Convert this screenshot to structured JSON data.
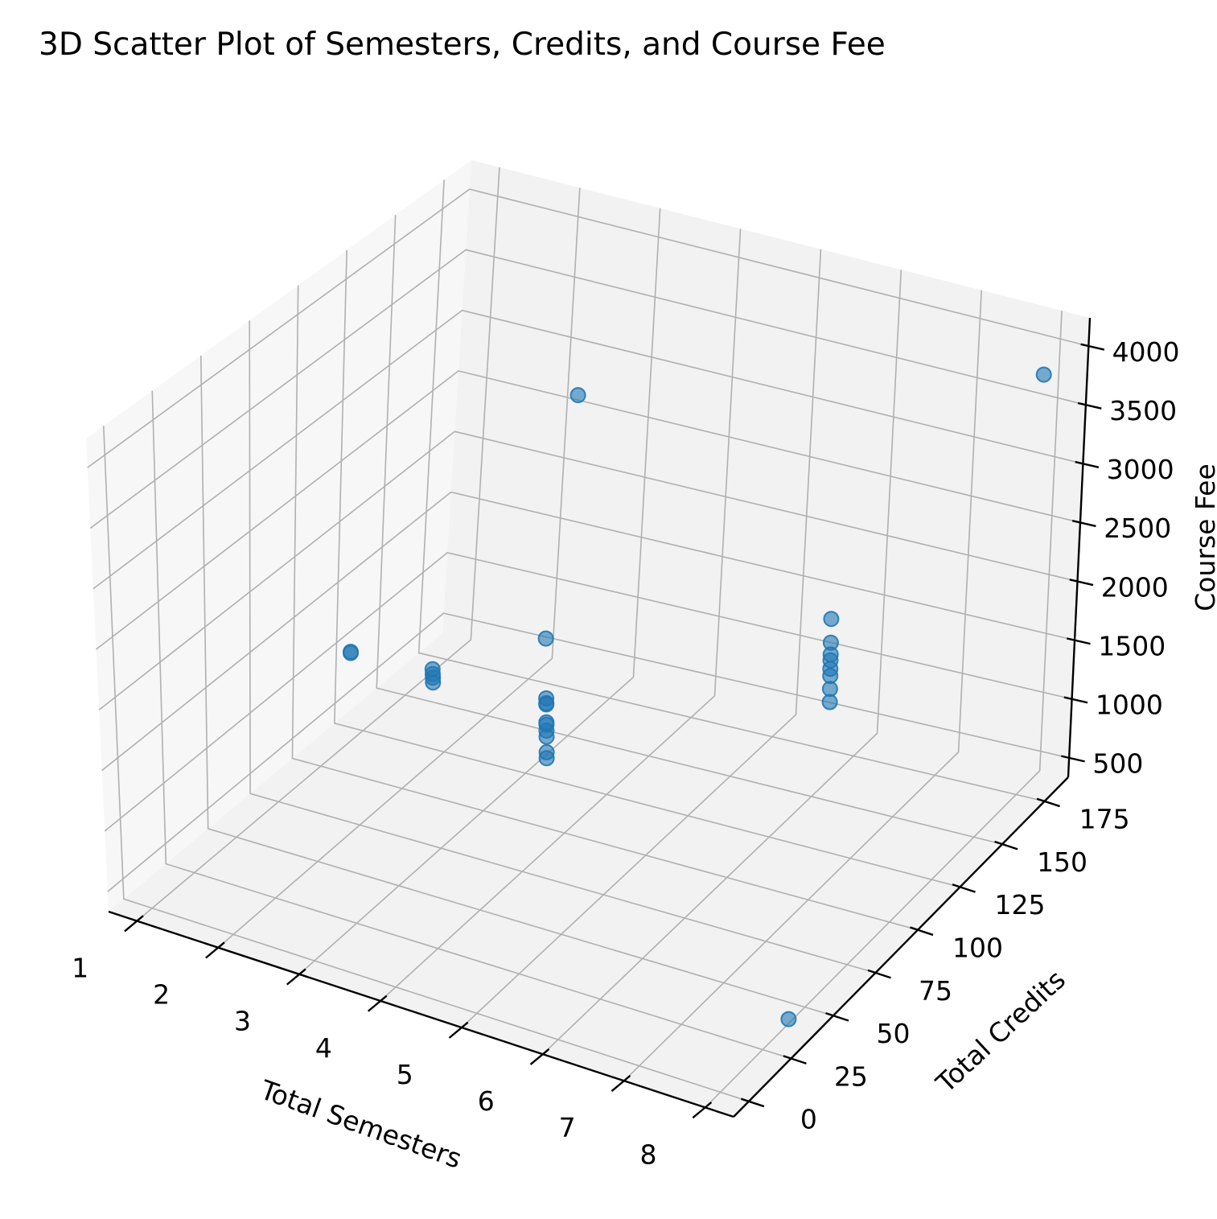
{
  "chart_data": {
    "type": "scatter",
    "projection": "3d",
    "title": "3D Scatter Plot of Semesters, Credits, and Course Fee",
    "xlabel": "Total Semesters",
    "ylabel": "Total Credits",
    "zlabel": "Course Fee",
    "xticks": [
      "1",
      "2",
      "3",
      "4",
      "5",
      "6",
      "7",
      "8"
    ],
    "yticks": [
      "0",
      "25",
      "50",
      "75",
      "100",
      "125",
      "150",
      "175"
    ],
    "zticks": [
      "500",
      "1000",
      "1500",
      "2000",
      "2500",
      "3000",
      "3500",
      "4000"
    ],
    "grid": true,
    "color": "#1f77b4",
    "point_alpha": 0.6,
    "points": [
      {
        "semesters": 1,
        "credits": 120,
        "fee": 1050
      },
      {
        "semesters": 1,
        "credits": 120,
        "fee": 1060
      },
      {
        "semesters": 2,
        "credits": 120,
        "fee": 1030
      },
      {
        "semesters": 2,
        "credits": 120,
        "fee": 1070
      },
      {
        "semesters": 2,
        "credits": 120,
        "fee": 1100
      },
      {
        "semesters": 2,
        "credits": 120,
        "fee": 1140
      },
      {
        "semesters": 4,
        "credits": 90,
        "fee": 1200
      },
      {
        "semesters": 4,
        "credits": 90,
        "fee": 1250
      },
      {
        "semesters": 4,
        "credits": 90,
        "fee": 1380
      },
      {
        "semesters": 4,
        "credits": 90,
        "fee": 1430
      },
      {
        "semesters": 4,
        "credits": 90,
        "fee": 1480
      },
      {
        "semesters": 4,
        "credits": 90,
        "fee": 1500
      },
      {
        "semesters": 4,
        "credits": 90,
        "fee": 1650
      },
      {
        "semesters": 4,
        "credits": 90,
        "fee": 1660
      },
      {
        "semesters": 4,
        "credits": 90,
        "fee": 1700
      },
      {
        "semesters": 4,
        "credits": 90,
        "fee": 2200
      },
      {
        "semesters": 6,
        "credits": 160,
        "fee": 1300
      },
      {
        "semesters": 6,
        "credits": 160,
        "fee": 1410
      },
      {
        "semesters": 6,
        "credits": 160,
        "fee": 1520
      },
      {
        "semesters": 6,
        "credits": 160,
        "fee": 1580
      },
      {
        "semesters": 6,
        "credits": 160,
        "fee": 1650
      },
      {
        "semesters": 6,
        "credits": 160,
        "fee": 1700
      },
      {
        "semesters": 6,
        "credits": 160,
        "fee": 1800
      },
      {
        "semesters": 6,
        "credits": 160,
        "fee": 2000
      },
      {
        "semesters": 8,
        "credits": 180,
        "fee": 4300
      },
      {
        "semesters": 4,
        "credits": 110,
        "fee": 4000
      },
      {
        "semesters": 8,
        "credits": 40,
        "fee": 500
      }
    ]
  }
}
